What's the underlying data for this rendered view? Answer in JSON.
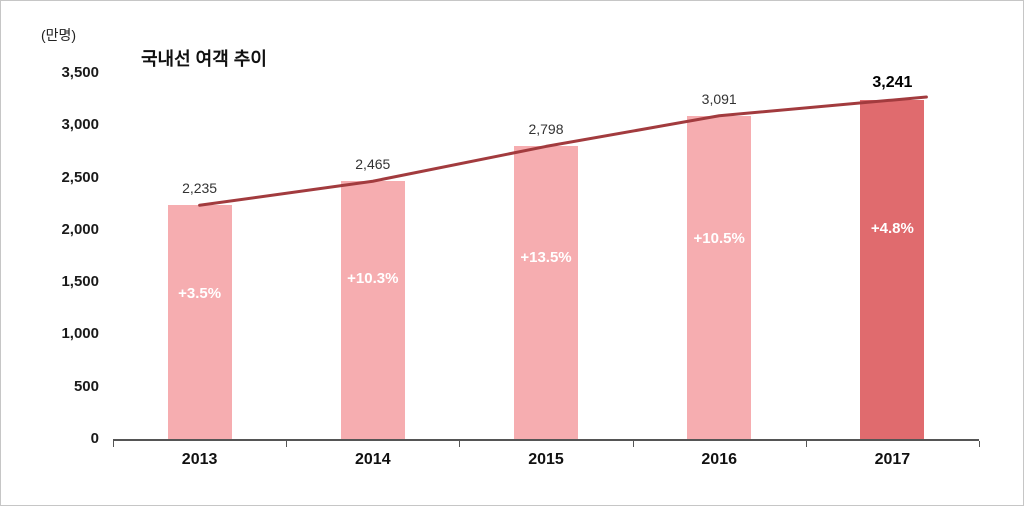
{
  "chart_data": {
    "type": "bar",
    "title": "국내선 여객 추이",
    "ylabel": "(만명)",
    "categories": [
      "2013",
      "2014",
      "2015",
      "2016",
      "2017"
    ],
    "values": [
      2235,
      2465,
      2798,
      3091,
      3241
    ],
    "value_labels": [
      "2,235",
      "2,465",
      "2,798",
      "3,091",
      "3,241"
    ],
    "growth_labels": [
      "+3.5%",
      "+10.3%",
      "+13.5%",
      "+10.5%",
      "+4.8%"
    ],
    "ylim": [
      0,
      3500
    ],
    "ytick_step": 500,
    "ytick_labels": [
      "0",
      "500",
      "1,000",
      "1,500",
      "2,000",
      "2,500",
      "3,000",
      "3,500"
    ],
    "grid": "off",
    "legend": "none",
    "trend_line": true,
    "colors": {
      "bar": "#F6ADB0",
      "last_bar": "#E06B6E",
      "line": "#A23B3E"
    }
  }
}
